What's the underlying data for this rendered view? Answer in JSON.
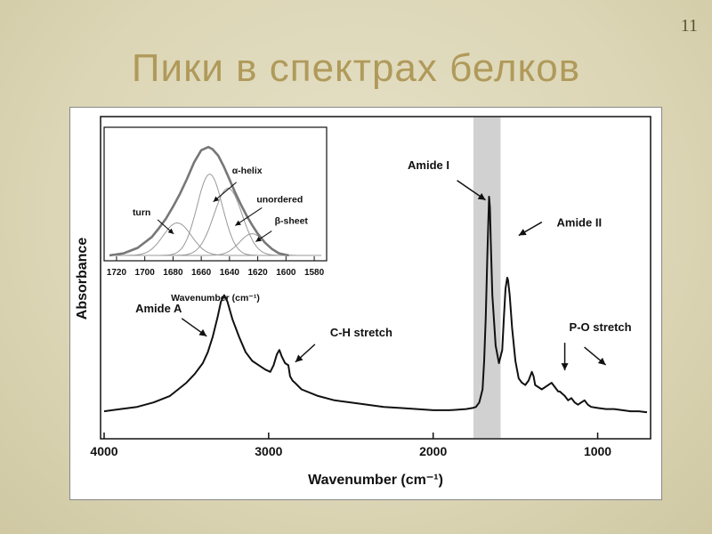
{
  "slide": {
    "number": "11",
    "title": "Пики в спектрах белков"
  },
  "chart_data": [
    {
      "type": "line",
      "xlabel": "Wavenumber (cm⁻¹)",
      "ylabel": "Absorbance",
      "xlim": [
        4000,
        700
      ],
      "x_reversed": true,
      "xticks": [
        4000,
        3000,
        2000,
        1000
      ],
      "xtick_labels": [
        "4000",
        "3000",
        "2000",
        "1000"
      ],
      "highlight_band": [
        1755,
        1590
      ],
      "series": [
        {
          "x": [
            4000,
            3900,
            3800,
            3700,
            3600,
            3550,
            3500,
            3450,
            3400,
            3370,
            3340,
            3310,
            3290,
            3270,
            3250,
            3220,
            3180,
            3140,
            3100,
            3060,
            3020,
            2990,
            2970,
            2950,
            2935,
            2920,
            2900,
            2880,
            2870,
            2855,
            2840,
            2800,
            2700,
            2600,
            2500,
            2400,
            2300,
            2200,
            2100,
            2000,
            1900,
            1800,
            1760,
            1740,
            1720,
            1700,
            1690,
            1680,
            1670,
            1660,
            1655,
            1650,
            1640,
            1620,
            1600,
            1580,
            1570,
            1560,
            1550,
            1545,
            1535,
            1520,
            1500,
            1480,
            1460,
            1440,
            1420,
            1400,
            1390,
            1380,
            1360,
            1340,
            1300,
            1280,
            1260,
            1240,
            1230,
            1200,
            1180,
            1160,
            1140,
            1120,
            1100,
            1080,
            1060,
            1040,
            1000,
            950,
            900,
            850,
            800,
            750,
            700
          ],
          "y": [
            0.02,
            0.03,
            0.04,
            0.06,
            0.09,
            0.12,
            0.15,
            0.19,
            0.24,
            0.29,
            0.36,
            0.45,
            0.52,
            0.55,
            0.52,
            0.44,
            0.36,
            0.29,
            0.25,
            0.23,
            0.21,
            0.2,
            0.23,
            0.28,
            0.3,
            0.27,
            0.24,
            0.23,
            0.18,
            0.16,
            0.15,
            0.12,
            0.09,
            0.07,
            0.06,
            0.05,
            0.04,
            0.035,
            0.03,
            0.025,
            0.025,
            0.03,
            0.035,
            0.04,
            0.06,
            0.12,
            0.25,
            0.45,
            0.75,
            1.0,
            0.95,
            0.8,
            0.55,
            0.32,
            0.24,
            0.3,
            0.45,
            0.58,
            0.63,
            0.62,
            0.55,
            0.4,
            0.25,
            0.17,
            0.15,
            0.14,
            0.16,
            0.2,
            0.18,
            0.14,
            0.13,
            0.12,
            0.14,
            0.15,
            0.13,
            0.11,
            0.11,
            0.09,
            0.07,
            0.08,
            0.06,
            0.05,
            0.06,
            0.07,
            0.05,
            0.04,
            0.035,
            0.03,
            0.03,
            0.025,
            0.02,
            0.02,
            0.015
          ]
        }
      ],
      "annotations": [
        {
          "text": "Amide A",
          "x": 3290,
          "y": 0.33
        },
        {
          "text": "C-H stretch",
          "x": 2870,
          "y": 0.22
        },
        {
          "text": "Amide I",
          "x": 1660,
          "y": 0.7
        },
        {
          "text": "Amide II",
          "x": 1545,
          "y": 0.64
        },
        {
          "text": "P-O stretch",
          "x": 1200,
          "y": 0.15
        }
      ]
    },
    {
      "type": "line",
      "subtype": "inset",
      "xlabel": "Wavenumber (cm⁻¹)",
      "xlim": [
        1725,
        1575
      ],
      "x_reversed": true,
      "xticks": [
        1720,
        1700,
        1680,
        1660,
        1640,
        1620,
        1600,
        1580
      ],
      "xtick_labels": [
        "1720",
        "1700",
        "1680",
        "1660",
        "1640",
        "1620",
        "1600",
        "1580"
      ],
      "ylim": [
        0,
        1.1
      ],
      "components": [
        {
          "name": "turn",
          "center": 1677,
          "width": 10,
          "height": 0.3
        },
        {
          "name": "α-helix",
          "center": 1654,
          "width": 9,
          "height": 0.75
        },
        {
          "name": "unordered",
          "center": 1641,
          "width": 10,
          "height": 0.62
        },
        {
          "name": "β-sheet",
          "center": 1624,
          "width": 9,
          "height": 0.2
        }
      ],
      "envelope": {
        "x": [
          1725,
          1715,
          1705,
          1695,
          1690,
          1685,
          1680,
          1675,
          1670,
          1665,
          1660,
          1655,
          1652,
          1648,
          1644,
          1640,
          1636,
          1632,
          1628,
          1624,
          1620,
          1615,
          1610,
          1605,
          1600,
          1598
        ],
        "y": [
          0.0,
          0.02,
          0.07,
          0.17,
          0.25,
          0.34,
          0.45,
          0.57,
          0.71,
          0.86,
          0.97,
          1.0,
          0.98,
          0.92,
          0.82,
          0.7,
          0.58,
          0.47,
          0.37,
          0.28,
          0.2,
          0.12,
          0.06,
          0.02,
          0.005,
          0.0
        ]
      }
    }
  ]
}
